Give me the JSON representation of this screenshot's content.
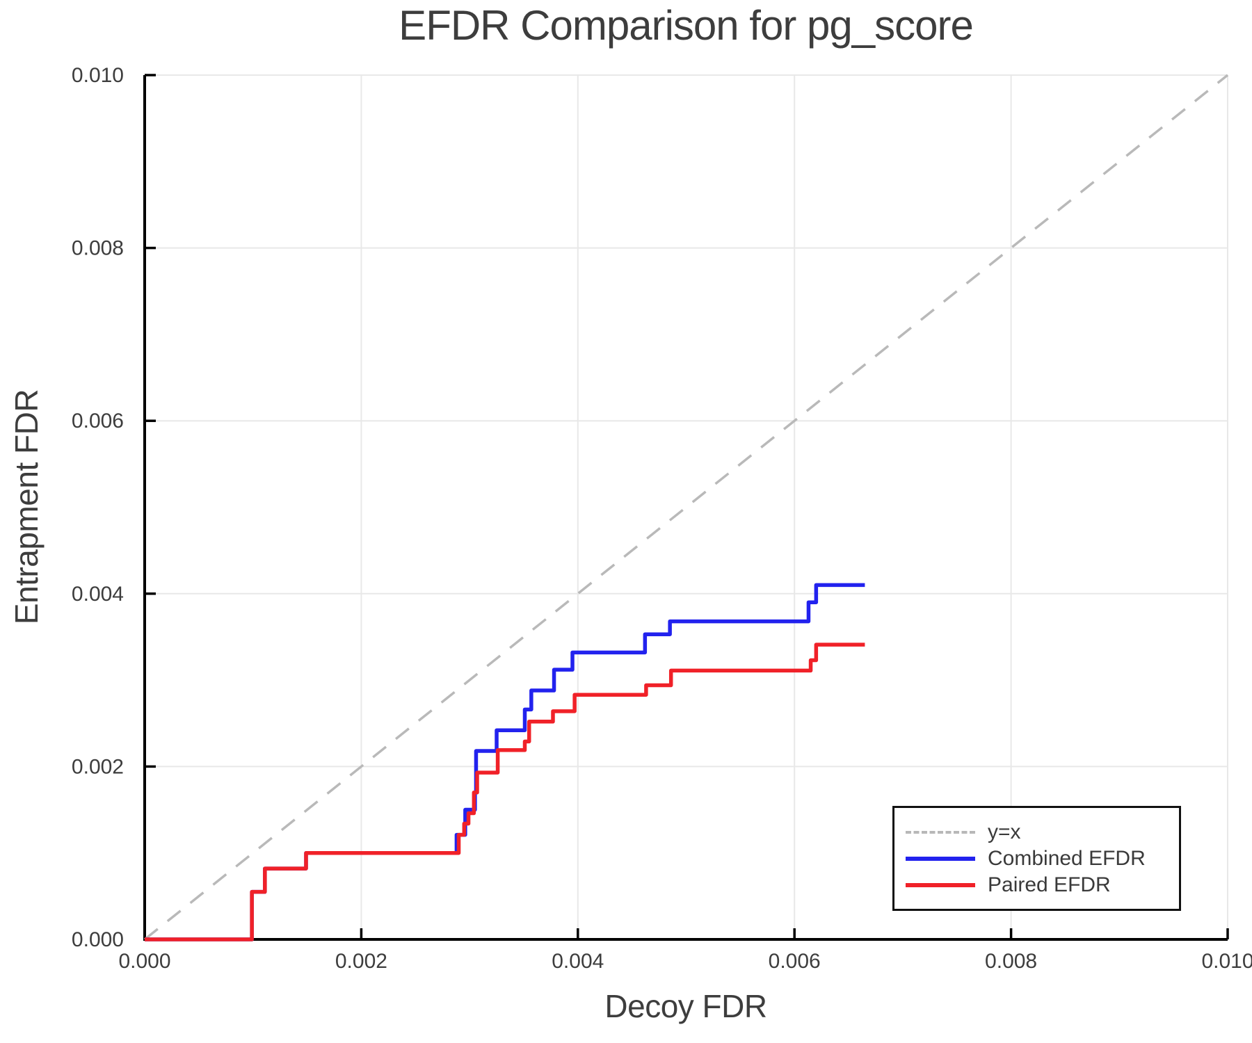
{
  "chart_data": {
    "type": "step_line",
    "title": "EFDR Comparison for pg_score",
    "xlabel": "Decoy FDR",
    "ylabel": "Entrapment FDR",
    "xlim": [
      0.0,
      0.01
    ],
    "ylim": [
      0.0,
      0.01
    ],
    "grid": true,
    "x_ticks": [
      {
        "value": 0.0,
        "label": "0.000"
      },
      {
        "value": 0.002,
        "label": "0.002"
      },
      {
        "value": 0.004,
        "label": "0.004"
      },
      {
        "value": 0.006,
        "label": "0.006"
      },
      {
        "value": 0.008,
        "label": "0.008"
      },
      {
        "value": 0.01,
        "label": "0.010"
      }
    ],
    "y_ticks": [
      {
        "value": 0.0,
        "label": "0.000"
      },
      {
        "value": 0.002,
        "label": "0.002"
      },
      {
        "value": 0.004,
        "label": "0.004"
      },
      {
        "value": 0.006,
        "label": "0.006"
      },
      {
        "value": 0.008,
        "label": "0.008"
      },
      {
        "value": 0.01,
        "label": "0.010"
      }
    ],
    "reference_line": {
      "label": "y=x",
      "from": [
        0.0,
        0.0
      ],
      "to": [
        0.01,
        0.01
      ],
      "color": "#b9b9b9",
      "style": "dashed"
    },
    "series": [
      {
        "name": "Combined EFDR",
        "color": "#2222ee",
        "start": [
          0.0,
          0.0
        ],
        "end_x": 0.00665,
        "steps": [
          [
            0.00099,
            0.00055
          ],
          [
            0.00111,
            0.00082
          ],
          [
            0.00149,
            0.001
          ],
          [
            0.00288,
            0.00121
          ],
          [
            0.00296,
            0.0015
          ],
          [
            0.00305,
            0.0017
          ],
          [
            0.00306,
            0.00218
          ],
          [
            0.00325,
            0.00242
          ],
          [
            0.00351,
            0.00266
          ],
          [
            0.00357,
            0.00288
          ],
          [
            0.00378,
            0.00312
          ],
          [
            0.00395,
            0.00332
          ],
          [
            0.00462,
            0.00353
          ],
          [
            0.00485,
            0.00368
          ],
          [
            0.00613,
            0.0039
          ],
          [
            0.0062,
            0.0041
          ]
        ]
      },
      {
        "name": "Paired EFDR",
        "color": "#f02128",
        "start": [
          0.0,
          0.0
        ],
        "end_x": 0.00665,
        "steps": [
          [
            0.00099,
            0.00055
          ],
          [
            0.00111,
            0.00082
          ],
          [
            0.00149,
            0.001
          ],
          [
            0.0029,
            0.00121
          ],
          [
            0.00295,
            0.00134
          ],
          [
            0.00299,
            0.00146
          ],
          [
            0.00304,
            0.0017
          ],
          [
            0.00307,
            0.00193
          ],
          [
            0.00326,
            0.00219
          ],
          [
            0.00351,
            0.00229
          ],
          [
            0.00355,
            0.00252
          ],
          [
            0.00377,
            0.00264
          ],
          [
            0.00397,
            0.00283
          ],
          [
            0.00463,
            0.00294
          ],
          [
            0.00486,
            0.00311
          ],
          [
            0.00615,
            0.00323
          ],
          [
            0.0062,
            0.00341
          ]
        ]
      }
    ],
    "legend": {
      "position": "bottom-right",
      "items": [
        {
          "label": "y=x",
          "style": "dashed",
          "color": "#b8b8b8"
        },
        {
          "label": "Combined EFDR",
          "style": "solid",
          "color": "#2222ee"
        },
        {
          "label": "Paired EFDR",
          "style": "solid",
          "color": "#f02128"
        }
      ]
    },
    "style": {
      "grid_color": "#e8e8e8",
      "spine_color": "#000000",
      "text_color": "#3d3d3d",
      "tick_label_size": 30,
      "series_stroke_width": 5.5
    }
  }
}
